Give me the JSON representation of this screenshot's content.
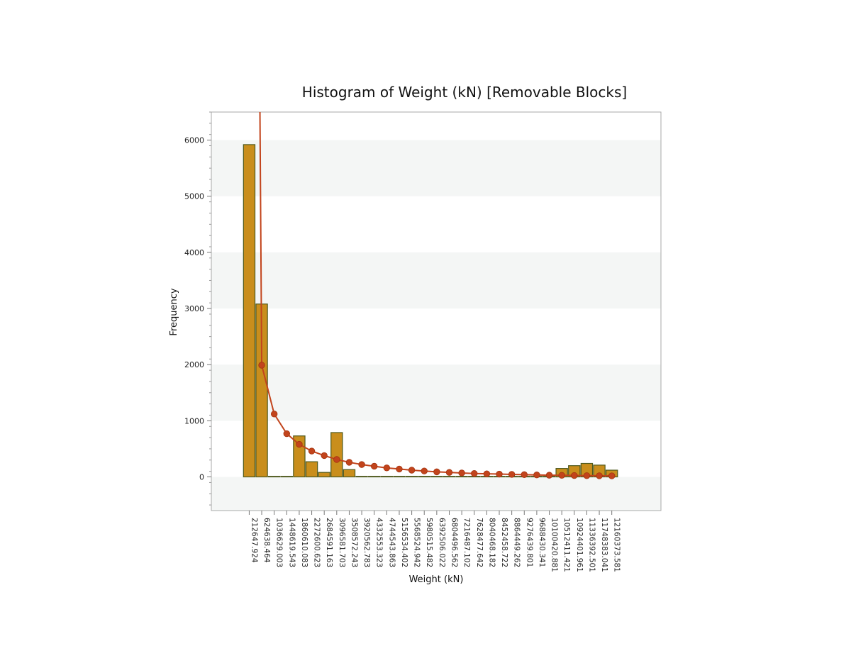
{
  "chart_data": {
    "type": "bar",
    "title": "Histogram of Weight (kN) [Removable Blocks]",
    "xlabel": "Weight (kN)",
    "ylabel": "Frequency",
    "ylim": [
      -600,
      6500
    ],
    "yticks": [
      0,
      1000,
      2000,
      3000,
      4000,
      5000,
      6000
    ],
    "grid": "horizontal alternating bands",
    "categories": [
      "212647.924",
      "624638.464",
      "1036629.003",
      "1448619.543",
      "1860610.083",
      "2272600.623",
      "2684591.163",
      "3096581.703",
      "3508572.243",
      "3920562.783",
      "4332553.323",
      "4744543.863",
      "5156534.402",
      "5568524.942",
      "5980515.482",
      "6392506.022",
      "6804496.562",
      "7216487.102",
      "7628477.642",
      "8040468.182",
      "8452458.722",
      "8864449.262",
      "9276439.801",
      "9688430.341",
      "10100420.881",
      "10512411.421",
      "10924401.961",
      "11336392.501",
      "11748383.041",
      "12160373.581"
    ],
    "series": [
      {
        "type": "bar",
        "color": "#c98e1c",
        "edge_color": "#4f5a1e",
        "values": [
          5920,
          3080,
          0,
          0,
          730,
          270,
          80,
          790,
          130,
          0,
          0,
          0,
          0,
          0,
          0,
          0,
          0,
          0,
          0,
          0,
          0,
          0,
          0,
          0,
          0,
          150,
          200,
          240,
          210,
          120
        ]
      },
      {
        "type": "line",
        "color": "#c2441c",
        "curve_tail_x": "624638.464",
        "values": [
          null,
          1990,
          1120,
          770,
          580,
          460,
          380,
          310,
          260,
          220,
          190,
          160,
          140,
          120,
          105,
          90,
          80,
          70,
          60,
          55,
          50,
          45,
          40,
          35,
          30,
          28,
          25,
          22,
          20,
          18
        ]
      }
    ]
  }
}
